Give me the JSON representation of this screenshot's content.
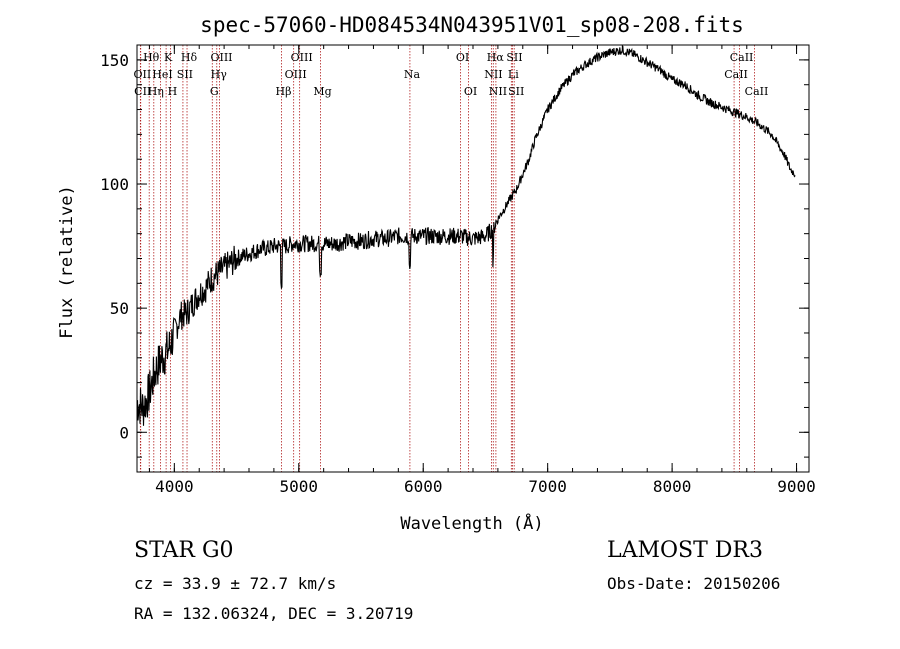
{
  "chart_data": {
    "type": "line",
    "title": "spec-57060-HD084534N043951V01_sp08-208.fits",
    "xlabel": "Wavelength (Å)",
    "ylabel": "Flux (relative)",
    "xlim": [
      3700,
      9100
    ],
    "ylim": [
      -16,
      156
    ],
    "xticks": [
      4000,
      5000,
      6000,
      7000,
      8000,
      9000
    ],
    "yticks": [
      0,
      50,
      100,
      150
    ],
    "xtick_labels": [
      "4000",
      "5000",
      "6000",
      "7000",
      "8000",
      "9000"
    ],
    "ytick_labels": [
      "0",
      "50",
      "100",
      "150"
    ],
    "series": [
      {
        "name": "flux",
        "x": [
          3700,
          3750,
          3800,
          3850,
          3900,
          3950,
          4000,
          4050,
          4100,
          4150,
          4200,
          4250,
          4300,
          4350,
          4400,
          4450,
          4500,
          4550,
          4600,
          4650,
          4700,
          4750,
          4800,
          4850,
          4900,
          4950,
          5000,
          5100,
          5200,
          5300,
          5400,
          5500,
          5600,
          5700,
          5800,
          5900,
          6000,
          6100,
          6200,
          6300,
          6400,
          6500,
          6560,
          6600,
          6650,
          6700,
          6750,
          6800,
          6850,
          6900,
          6950,
          7000,
          7100,
          7200,
          7300,
          7400,
          7500,
          7600,
          7700,
          7800,
          7900,
          8000,
          8100,
          8200,
          8300,
          8400,
          8500,
          8600,
          8700,
          8800,
          8850,
          8900,
          8950,
          8990
        ],
        "y": [
          12,
          10,
          16,
          25,
          30,
          33,
          40,
          47,
          48,
          52,
          56,
          58,
          62,
          64,
          66,
          68,
          70,
          71,
          72,
          73,
          74,
          74,
          75,
          75,
          75,
          76,
          76,
          76,
          76,
          76,
          77,
          77,
          78,
          78,
          79,
          79,
          79,
          79,
          79,
          79,
          78,
          79,
          82,
          86,
          90,
          94,
          98,
          104,
          110,
          118,
          124,
          130,
          138,
          144,
          148,
          151,
          153,
          154,
          152,
          149,
          146,
          142,
          140,
          136,
          133,
          131,
          129,
          127,
          124,
          120,
          116,
          112,
          106,
          104
        ]
      }
    ],
    "lines": [
      {
        "label": "Hθ",
        "x": 3798,
        "row": 1
      },
      {
        "label": "OII",
        "x": 3727,
        "row": 2
      },
      {
        "label": "CII",
        "x": 3730,
        "row": 3
      },
      {
        "label": "K",
        "x": 3934,
        "row": 1
      },
      {
        "label": "HeI",
        "x": 3889,
        "row": 2
      },
      {
        "label": "Hη",
        "x": 3835,
        "row": 3
      },
      {
        "label": "H",
        "x": 3969,
        "row": 3
      },
      {
        "label": "SII",
        "x": 4069,
        "row": 2
      },
      {
        "label": "Hδ",
        "x": 4102,
        "row": 1
      },
      {
        "label": "OIII",
        "x": 4363,
        "row": 1
      },
      {
        "label": "Hγ",
        "x": 4341,
        "row": 2
      },
      {
        "label": "G",
        "x": 4305,
        "row": 3
      },
      {
        "label": "Hβ",
        "x": 4861,
        "row": 3
      },
      {
        "label": "OIII",
        "x": 5007,
        "row": 1
      },
      {
        "label": "OIII",
        "x": 4959,
        "row": 2
      },
      {
        "label": "Mg",
        "x": 5175,
        "row": 3
      },
      {
        "label": "Na",
        "x": 5893,
        "row": 2
      },
      {
        "label": "OI",
        "x": 6300,
        "row": 1
      },
      {
        "label": "OI",
        "x": 6364,
        "row": 3
      },
      {
        "label": "Hα",
        "x": 6563,
        "row": 1
      },
      {
        "label": "NII",
        "x": 6548,
        "row": 2
      },
      {
        "label": "NII",
        "x": 6584,
        "row": 3
      },
      {
        "label": "SII",
        "x": 6717,
        "row": 1
      },
      {
        "label": "Li",
        "x": 6708,
        "row": 2
      },
      {
        "label": "SII",
        "x": 6731,
        "row": 3
      },
      {
        "label": "CaII",
        "x": 8542,
        "row": 1
      },
      {
        "label": "CaII",
        "x": 8498,
        "row": 2
      },
      {
        "label": "CaII",
        "x": 8662,
        "row": 3
      }
    ]
  },
  "info": {
    "object_class": "STAR    G0",
    "survey": "LAMOST DR3",
    "cz": "cz = 33.9 ± 72.7 km/s",
    "obs_date": "Obs-Date: 20150206",
    "radec": "RA = 132.06324, DEC =    3.20719"
  },
  "colors": {
    "spectrum": "#000000",
    "line_markers": "#b22222",
    "axes": "#000000"
  }
}
